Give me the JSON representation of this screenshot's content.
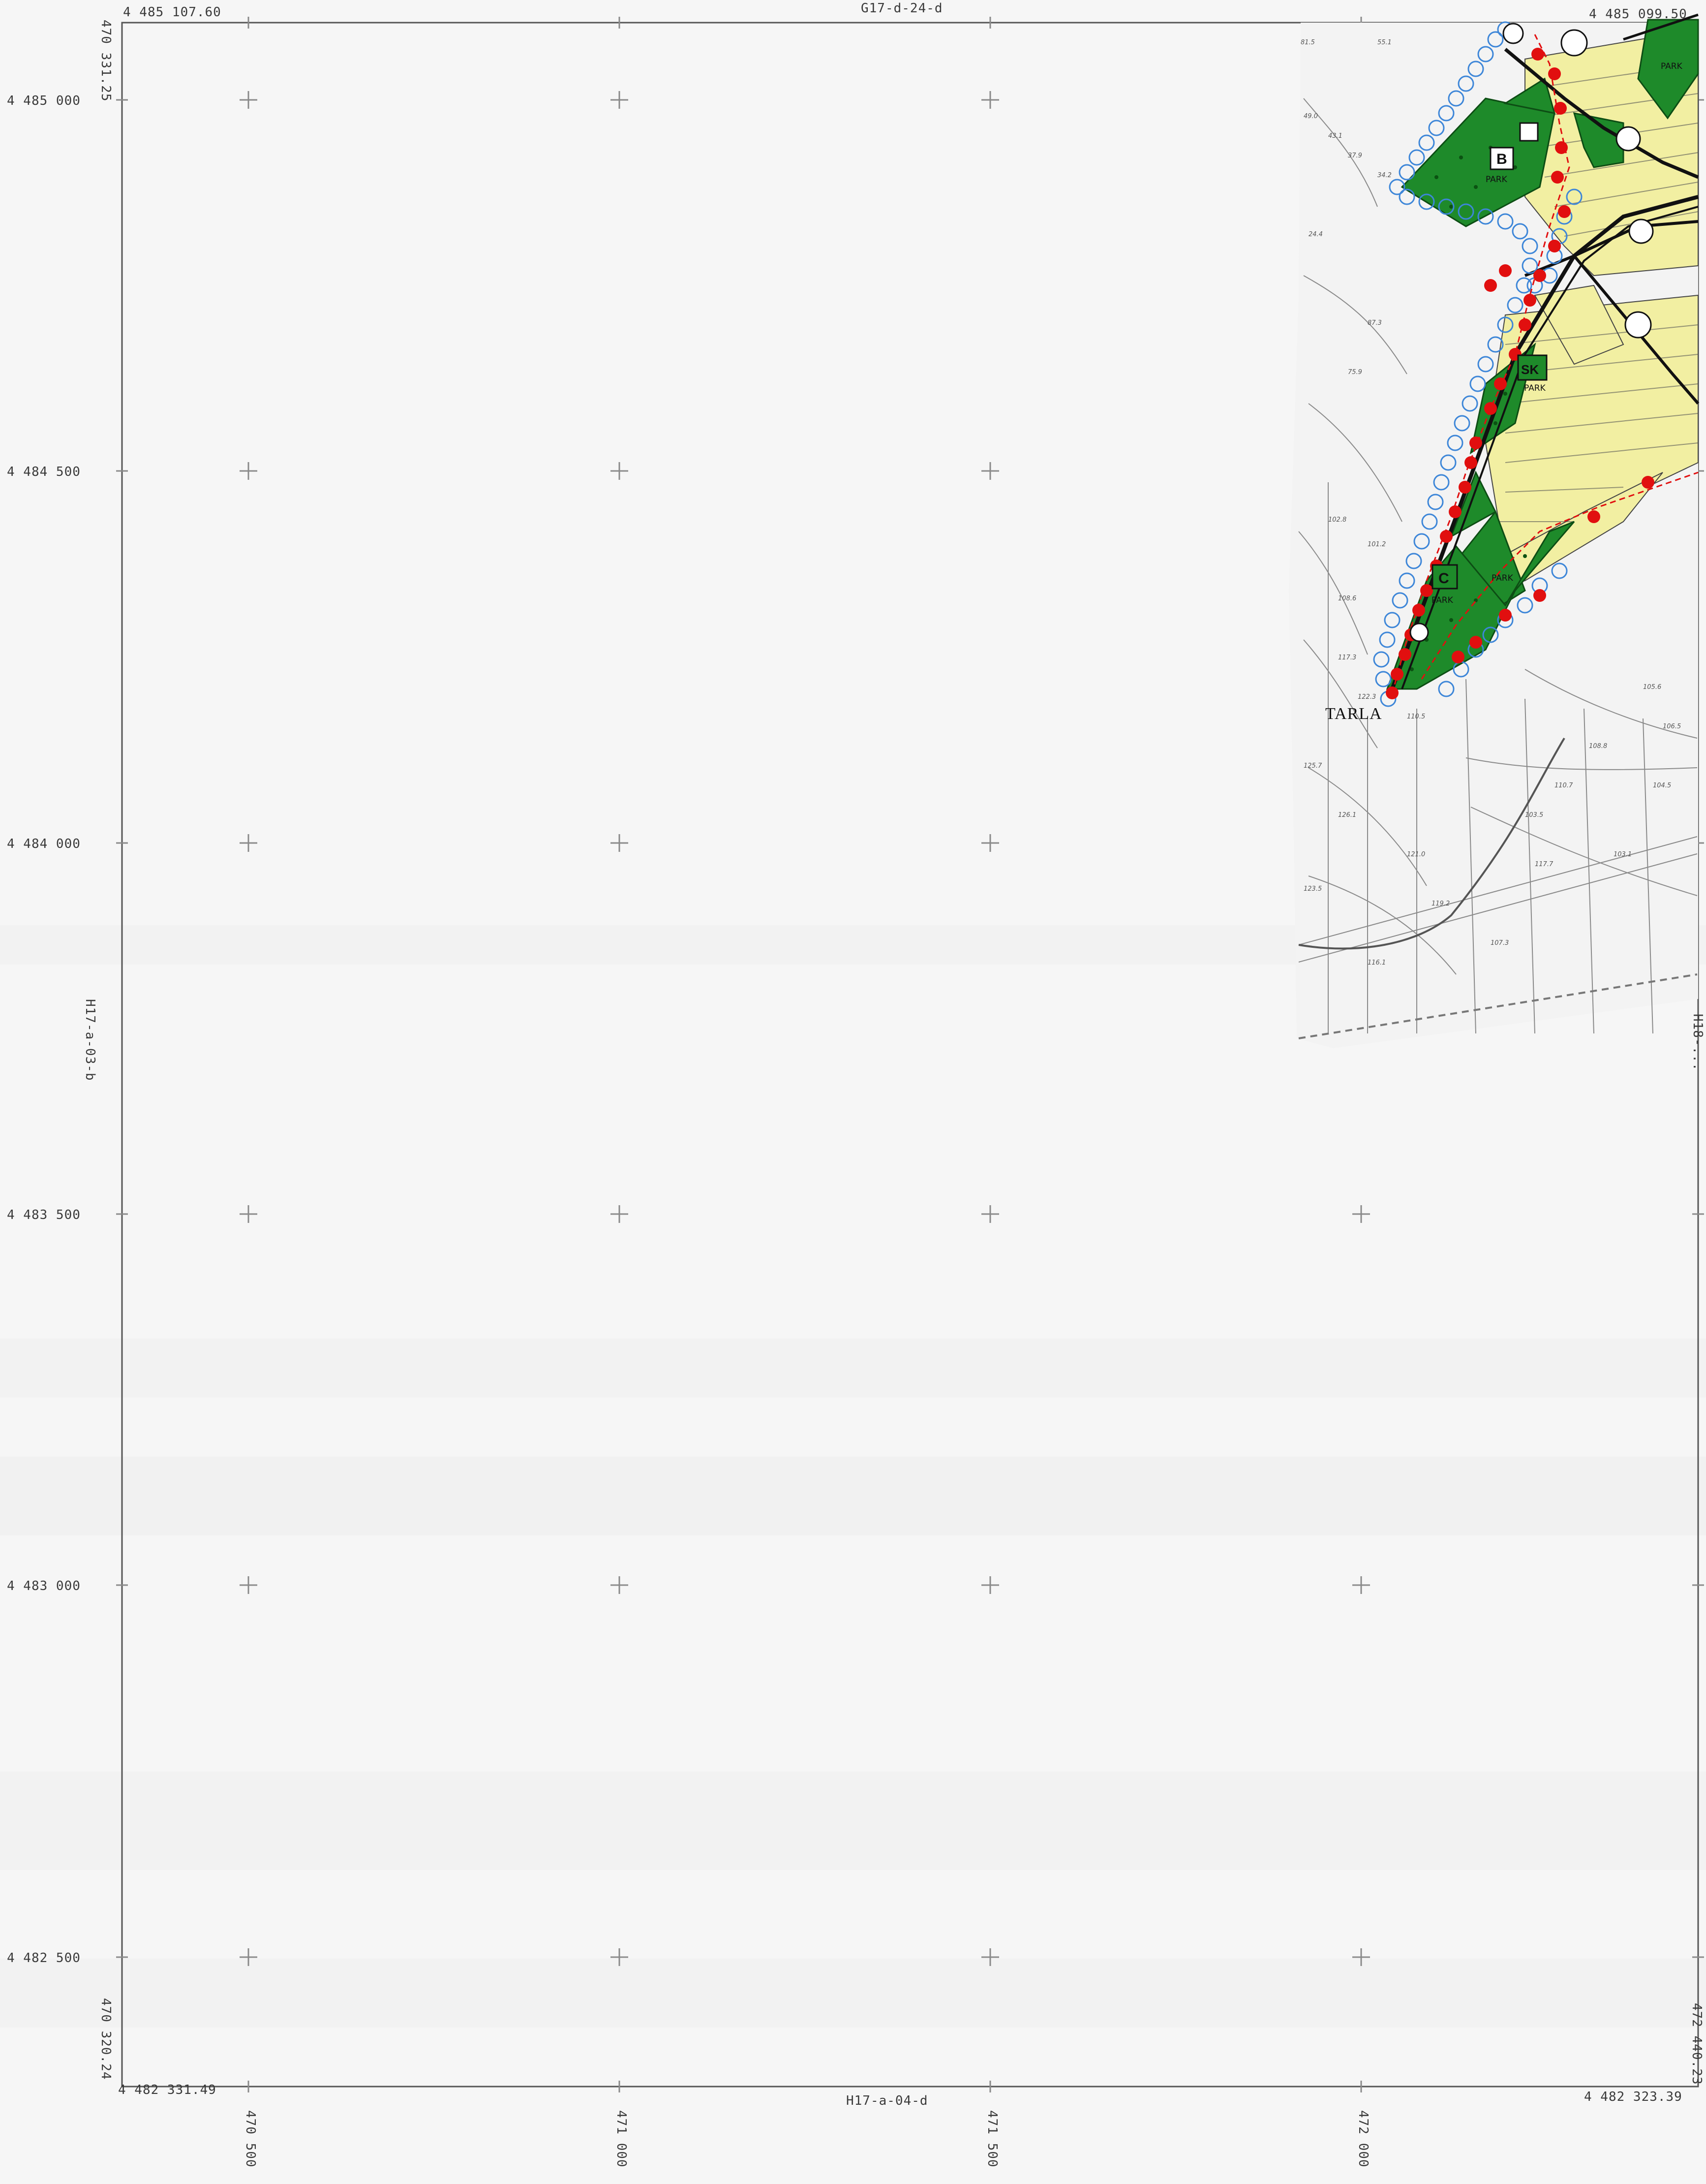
{
  "sheet": {
    "top_sheet_label": "G17-d-24-d",
    "bottom_sheet_label": "H17-a-04-d",
    "left_sheet_label": "H17-a-03-b",
    "right_sheet_label": "H18-..."
  },
  "corners": {
    "top_left_northing": "4 485 107.60",
    "top_left_easting": "470 331.25",
    "top_right_northing": "4 485 099.50",
    "bottom_left_northing": "4 482 331.49",
    "bottom_left_easting": "470 320.24",
    "bottom_right_northing": "4 482 323.39",
    "bottom_right_easting": "472 440.23"
  },
  "grid": {
    "northings": [
      "4 485 000",
      "4 484 500",
      "4 484 000",
      "4 483 500",
      "4 483 000",
      "4 482 500"
    ],
    "eastings": [
      "470 500",
      "471 000",
      "471 500",
      "472 000"
    ]
  },
  "map_labels": {
    "place_tarla": "TARLA",
    "park_1": "PARK",
    "park_2": "PARK",
    "park_3": "PARK",
    "park_4": "PARK",
    "park_5": "PARK",
    "zone_b": "B",
    "zone_c": "C",
    "zone_sk": "SK",
    "spot_heights": [
      "81.5",
      "55.1",
      "49.0",
      "43.1",
      "37.9",
      "34.2",
      "24.4",
      "87.3",
      "75.9",
      "102.8",
      "101.2",
      "117.3",
      "122.3",
      "108.6",
      "110.5",
      "125.7",
      "126.1",
      "123.5",
      "121.0",
      "116.1",
      "119.2",
      "107.3",
      "103.5",
      "117.7",
      "110.7",
      "108.8",
      "105.6",
      "103.1",
      "106.5",
      "104.5"
    ]
  },
  "colors": {
    "park_green": "#1e8a2a",
    "yellow_zone": "#f2efa2",
    "boundary_red": "#e10f0f",
    "buffer_blue": "#3d86d8",
    "road_black": "#111111",
    "contour_gray": "#8a8a8a"
  }
}
